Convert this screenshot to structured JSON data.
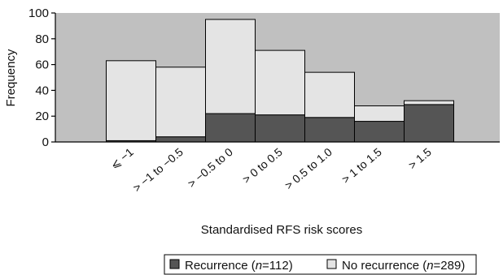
{
  "chart_data": {
    "type": "bar",
    "stacked": true,
    "categories": [
      "⩽ −1",
      "> −1 to −0.5",
      "> −0.5 to 0",
      "> 0 to 0.5",
      "> 0.5 to 1.0",
      "> 1 to 1.5",
      "> 1.5"
    ],
    "series": [
      {
        "name": "Recurrence (n=112)",
        "values": [
          1,
          4,
          22,
          21,
          19,
          16,
          29
        ]
      },
      {
        "name": "No recurrence (n=289)",
        "values": [
          62,
          54,
          73,
          50,
          35,
          12,
          3
        ]
      }
    ],
    "xlabel": "Standardised RFS risk scores",
    "ylabel": "Frequency",
    "ylim": [
      0,
      100
    ],
    "yticks": [
      0,
      20,
      40,
      60,
      80,
      100
    ],
    "grid": false,
    "legend_position": "bottom",
    "legend": {
      "recurrence": {
        "prefix": "Recurrence (",
        "italic": "n",
        "suffix": "=112)"
      },
      "no_recurrence": {
        "prefix": "No recurrence (",
        "italic": "n",
        "suffix": "=289)"
      }
    },
    "colors": {
      "plot_background": "#c0c0c0",
      "recurrence": "#555555",
      "no_recurrence": "#e4e4e4",
      "edge": "#000000"
    }
  }
}
